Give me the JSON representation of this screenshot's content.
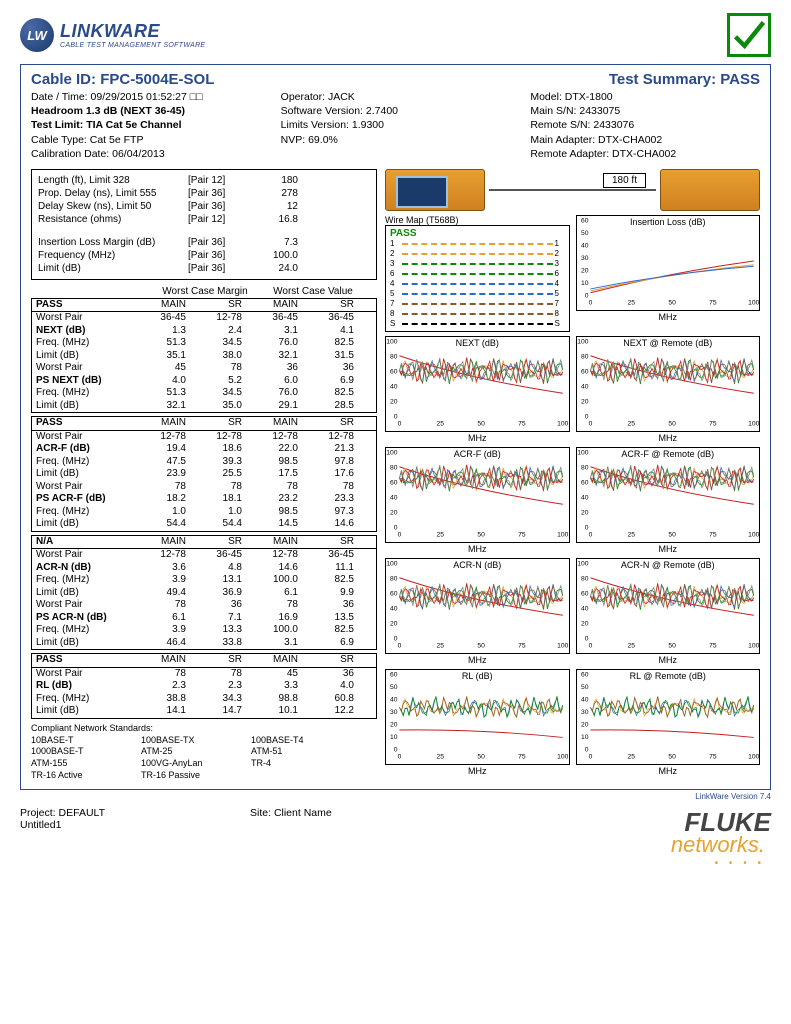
{
  "logo": {
    "badge": "LW",
    "name": "LINKWARE",
    "sub": "CABLE TEST MANAGEMENT SOFTWARE"
  },
  "header": {
    "cable_id_label": "Cable ID:",
    "cable_id": "FPC-5004E-SOL",
    "summary_label": "Test Summary:",
    "summary": "PASS"
  },
  "info": {
    "col1": [
      {
        "label": "Date / Time:",
        "value": "09/29/2015  01:52:27 □□",
        "bold": false
      },
      {
        "label": "Headroom 1.3 dB (NEXT 36-45)",
        "value": "",
        "bold": true
      },
      {
        "label": "Test Limit:",
        "value": "TIA Cat 5e Channel",
        "bold": true
      },
      {
        "label": "Cable Type:",
        "value": "Cat 5e FTP",
        "bold": false
      },
      {
        "label": "Calibration Date:",
        "value": "06/04/2013",
        "bold": false
      }
    ],
    "col2": [
      {
        "label": "Operator:",
        "value": "JACK"
      },
      {
        "label": "Software Version:",
        "value": "2.7400"
      },
      {
        "label": "Limits Version:",
        "value": "1.9300"
      },
      {
        "label": "NVP:",
        "value": "69.0%"
      }
    ],
    "col3": [
      {
        "label": "Model:",
        "value": "DTX-1800"
      },
      {
        "label": "Main S/N:",
        "value": "2433075"
      },
      {
        "label": "Remote S/N:",
        "value": "2433076"
      },
      {
        "label": "Main Adapter:",
        "value": "DTX-CHA002"
      },
      {
        "label": "Remote Adapter:",
        "value": "DTX-CHA002"
      }
    ]
  },
  "specs1": [
    {
      "name": "Length (ft), Limit 328",
      "pair": "[Pair 12]",
      "val": "180"
    },
    {
      "name": "Prop. Delay (ns), Limit 555",
      "pair": "[Pair 36]",
      "val": "278"
    },
    {
      "name": "Delay Skew (ns), Limit 50",
      "pair": "[Pair 36]",
      "val": "12"
    },
    {
      "name": "Resistance (ohms)",
      "pair": "[Pair 12]",
      "val": "16.8"
    }
  ],
  "specs2": [
    {
      "name": "Insertion Loss Margin (dB)",
      "pair": "[Pair 36]",
      "val": "7.3"
    },
    {
      "name": "Frequency (MHz)",
      "pair": "[Pair 36]",
      "val": "100.0"
    },
    {
      "name": "Limit (dB)",
      "pair": "[Pair 36]",
      "val": "24.0"
    }
  ],
  "margin_headers": {
    "h1": "Worst Case Margin",
    "h2": "Worst Case Value"
  },
  "col_headers": [
    "MAIN",
    "SR",
    "MAIN",
    "SR"
  ],
  "tables": [
    {
      "title": "PASS",
      "rows": [
        [
          "Worst Pair",
          "36-45",
          "12-78",
          "36-45",
          "36-45"
        ],
        [
          "NEXT (dB)",
          "1.3",
          "2.4",
          "3.1",
          "4.1"
        ],
        [
          "Freq. (MHz)",
          "51.3",
          "34.5",
          "76.0",
          "82.5"
        ],
        [
          "Limit (dB)",
          "35.1",
          "38.0",
          "32.1",
          "31.5"
        ],
        [
          "Worst Pair",
          "45",
          "78",
          "36",
          "36"
        ],
        [
          "PS NEXT (dB)",
          "4.0",
          "5.2",
          "6.0",
          "6.9"
        ],
        [
          "Freq. (MHz)",
          "51.3",
          "34.5",
          "76.0",
          "82.5"
        ],
        [
          "Limit (dB)",
          "32.1",
          "35.0",
          "29.1",
          "28.5"
        ]
      ],
      "bold_rows": [
        1,
        5
      ]
    },
    {
      "title": "PASS",
      "rows": [
        [
          "Worst Pair",
          "12-78",
          "12-78",
          "12-78",
          "12-78"
        ],
        [
          "ACR-F (dB)",
          "19.4",
          "18.6",
          "22.0",
          "21.3"
        ],
        [
          "Freq. (MHz)",
          "47.5",
          "39.3",
          "98.5",
          "97.8"
        ],
        [
          "Limit (dB)",
          "23.9",
          "25.5",
          "17.5",
          "17.6"
        ],
        [
          "Worst Pair",
          "78",
          "78",
          "78",
          "78"
        ],
        [
          "PS ACR-F (dB)",
          "18.2",
          "18.1",
          "23.2",
          "23.3"
        ],
        [
          "Freq. (MHz)",
          "1.0",
          "1.0",
          "98.5",
          "97.3"
        ],
        [
          "Limit (dB)",
          "54.4",
          "54.4",
          "14.5",
          "14.6"
        ]
      ],
      "bold_rows": [
        1,
        5
      ]
    },
    {
      "title": "N/A",
      "rows": [
        [
          "Worst Pair",
          "12-78",
          "36-45",
          "12-78",
          "36-45"
        ],
        [
          "ACR-N (dB)",
          "3.6",
          "4.8",
          "14.6",
          "11.1"
        ],
        [
          "Freq. (MHz)",
          "3.9",
          "13.1",
          "100.0",
          "82.5"
        ],
        [
          "Limit (dB)",
          "49.4",
          "36.9",
          "6.1",
          "9.9"
        ],
        [
          "Worst Pair",
          "78",
          "36",
          "78",
          "36"
        ],
        [
          "PS ACR-N (dB)",
          "6.1",
          "7.1",
          "16.9",
          "13.5"
        ],
        [
          "Freq. (MHz)",
          "3.9",
          "13.3",
          "100.0",
          "82.5"
        ],
        [
          "Limit (dB)",
          "46.4",
          "33.8",
          "3.1",
          "6.9"
        ]
      ],
      "bold_rows": [
        1,
        5
      ]
    },
    {
      "title": "PASS",
      "rows": [
        [
          "Worst Pair",
          "78",
          "78",
          "45",
          "36"
        ],
        [
          "RL (dB)",
          "2.3",
          "2.3",
          "3.3",
          "4.0"
        ],
        [
          "Freq. (MHz)",
          "38.8",
          "34.3",
          "98.8",
          "60.8"
        ],
        [
          "Limit (dB)",
          "14.1",
          "14.7",
          "10.1",
          "12.2"
        ]
      ],
      "bold_rows": [
        1
      ]
    }
  ],
  "standards": {
    "title": "Compliant Network Standards:",
    "rows": [
      [
        "10BASE-T",
        "100BASE-TX",
        "100BASE-T4"
      ],
      [
        "1000BASE-T",
        "ATM-25",
        "ATM-51"
      ],
      [
        "ATM-155",
        "100VG-AnyLan",
        "TR-4"
      ],
      [
        "TR-16 Active",
        "TR-16 Passive",
        ""
      ]
    ]
  },
  "distance": "180 ft",
  "wiremap": {
    "title": "Wire Map (T568B)",
    "pass": "PASS",
    "pairs": [
      {
        "n": "1",
        "color": "#e8a030"
      },
      {
        "n": "2",
        "color": "#e8a030"
      },
      {
        "n": "3",
        "color": "#0a8a0a"
      },
      {
        "n": "6",
        "color": "#0a8a0a"
      },
      {
        "n": "4",
        "color": "#2a6ad0"
      },
      {
        "n": "5",
        "color": "#2a6ad0"
      },
      {
        "n": "7",
        "color": "#8a5a2a"
      },
      {
        "n": "8",
        "color": "#8a5a2a"
      },
      {
        "n": "S",
        "color": "#000"
      }
    ]
  },
  "charts": [
    {
      "title": "Insertion Loss (dB)",
      "ylim": 60,
      "xtick": [
        0,
        25,
        50,
        75,
        100
      ],
      "ytick": [
        0,
        10,
        20,
        30,
        40,
        50,
        60
      ],
      "type": "rising"
    },
    {
      "title": "NEXT (dB)",
      "ylim": 100,
      "xtick": [
        0,
        25,
        50,
        75,
        100
      ],
      "ytick": [
        0,
        20,
        40,
        60,
        80,
        100
      ],
      "type": "noisy"
    },
    {
      "title": "NEXT @ Remote (dB)",
      "ylim": 100,
      "xtick": [
        0,
        25,
        50,
        75,
        100
      ],
      "ytick": [
        0,
        20,
        40,
        60,
        80,
        100
      ],
      "type": "noisy"
    },
    {
      "title": "ACR-F (dB)",
      "ylim": 100,
      "xtick": [
        0,
        25,
        50,
        75,
        100
      ],
      "ytick": [
        0,
        20,
        40,
        60,
        80,
        100
      ],
      "type": "noisy2"
    },
    {
      "title": "ACR-F @ Remote (dB)",
      "ylim": 100,
      "xtick": [
        0,
        25,
        50,
        75,
        100
      ],
      "ytick": [
        0,
        20,
        40,
        60,
        80,
        100
      ],
      "type": "noisy2"
    },
    {
      "title": "ACR-N (dB)",
      "ylim": 100,
      "xtick": [
        0,
        25,
        50,
        75,
        100
      ],
      "ytick": [
        0,
        20,
        40,
        60,
        80,
        100
      ],
      "type": "noisy3"
    },
    {
      "title": "ACR-N @ Remote (dB)",
      "ylim": 100,
      "xtick": [
        0,
        25,
        50,
        75,
        100
      ],
      "ytick": [
        0,
        20,
        40,
        60,
        80,
        100
      ],
      "type": "noisy3"
    },
    {
      "title": "RL (dB)",
      "ylim": 60,
      "xtick": [
        0,
        25,
        50,
        75,
        100
      ],
      "ytick": [
        0,
        10,
        20,
        30,
        40,
        50,
        60
      ],
      "type": "rl"
    },
    {
      "title": "RL @ Remote (dB)",
      "ylim": 60,
      "xtick": [
        0,
        25,
        50,
        75,
        100
      ],
      "ytick": [
        0,
        10,
        20,
        30,
        40,
        50,
        60
      ],
      "type": "rl"
    }
  ],
  "chart_colors": [
    "#2a6ad0",
    "#e8a030",
    "#0a8a0a",
    "#8a5a2a",
    "#c02020",
    "#808080"
  ],
  "xlabel": "MHz",
  "version": "LinkWare Version 7.4",
  "footer": {
    "project_label": "Project:",
    "project": "DEFAULT",
    "file": "Untitled1",
    "site_label": "Site:",
    "site": "Client Name"
  },
  "fluke": {
    "name": "FLUKE",
    "net": "networks.",
    "dots": "• • • •"
  }
}
